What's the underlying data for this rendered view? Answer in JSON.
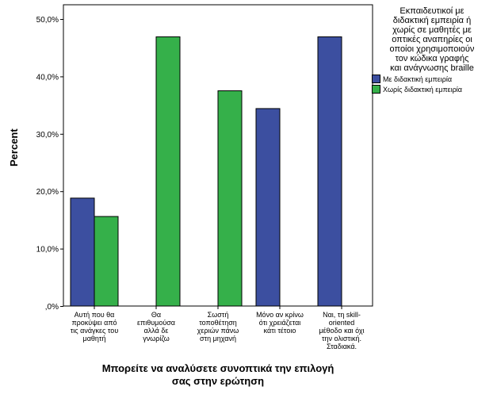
{
  "chart_data": {
    "type": "bar",
    "ylabel": "Percent",
    "xlabel_lines": [
      "Μπορείτε να αναλύσετε συνοπτικά την επιλογή",
      "σας στην ερώτηση"
    ],
    "ylim": [
      0,
      50
    ],
    "yticks": [
      0,
      10,
      20,
      30,
      40,
      50
    ],
    "ytick_labels": [
      ",0%",
      "10,0%",
      "20,0%",
      "30,0%",
      "40,0%",
      "50,0%"
    ],
    "categories": [
      [
        "Αυτή που θα",
        "προκύψει από",
        "τις ανάγκες του",
        "μαθητή"
      ],
      [
        "Θα",
        "επιθυμούσα",
        "αλλά δε",
        "γνωρίζω"
      ],
      [
        "Σωστή",
        "τοποθέτηση",
        "χεριών πάνω",
        "στη μηχανή"
      ],
      [
        "Μόνο αν κρίνω",
        "ότι χρειάζεται",
        "κάτι τέτοιο"
      ],
      [
        "Ναι, τη skill-",
        "oriented",
        "μέθοδο και όχι",
        "την ολιστική.",
        "Σταδιακά."
      ]
    ],
    "legend": {
      "title_lines": [
        "Εκπαιδευτικοί με",
        "διδακτική εμπειρία ή",
        "χωρίς σε μαθητές με",
        "οπτικές αναπηρίες οι",
        "οποίοι χρησιμοποιούν",
        "τον κώδικα γραφής",
        "και ανάγνωσης braille"
      ],
      "position": "right"
    },
    "series": [
      {
        "name": "Με διδακτική εμπειρία",
        "color": "#3c4fa0",
        "values": [
          18.8,
          0,
          0,
          34.4,
          46.9
        ]
      },
      {
        "name": "Χωρίς διδακτική εμπειρία",
        "color": "#35b04a",
        "values": [
          15.6,
          46.9,
          37.5,
          0,
          0
        ]
      }
    ],
    "grid": false
  }
}
